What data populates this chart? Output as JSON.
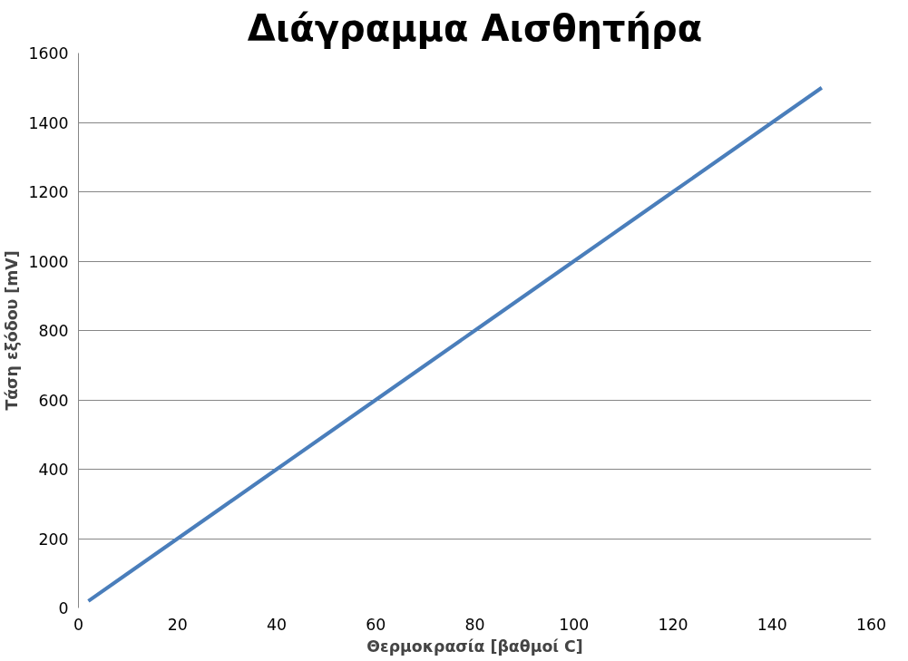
{
  "chart_data": {
    "type": "line",
    "title": "Διάγραμμα Αισθητήρα",
    "xlabel": "Θερμοκρασία [βαθμοί C]",
    "ylabel": "Τάση εξόδου [mV]",
    "x": [
      2,
      10,
      20,
      30,
      40,
      50,
      60,
      70,
      80,
      90,
      100,
      110,
      120,
      130,
      140,
      150
    ],
    "series": [
      {
        "color": "#4a7ebb",
        "values": [
          20,
          100,
          200,
          300,
          400,
          500,
          600,
          700,
          800,
          900,
          1000,
          1100,
          1200,
          1300,
          1400,
          1500
        ]
      }
    ],
    "xlim": [
      0,
      160
    ],
    "ylim": [
      0,
      1600
    ],
    "xticks": [
      0,
      20,
      40,
      60,
      80,
      100,
      120,
      140,
      160
    ],
    "yticks": [
      0,
      200,
      400,
      600,
      800,
      1000,
      1200,
      1400,
      1600
    ],
    "grid": "y",
    "marker": "none",
    "line_style": "solid"
  }
}
